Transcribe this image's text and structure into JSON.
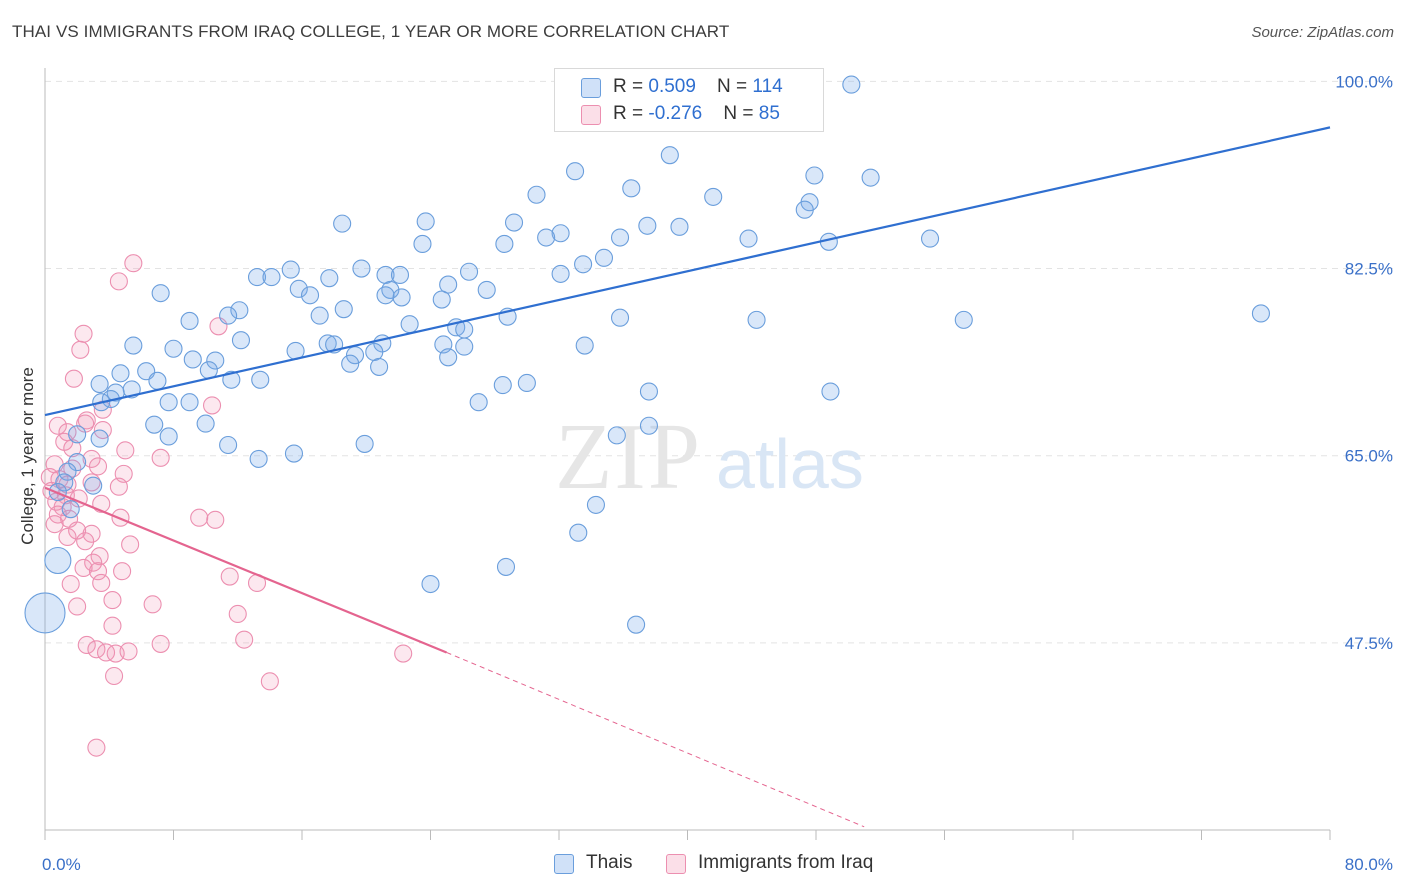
{
  "title": "THAI VS IMMIGRANTS FROM IRAQ COLLEGE, 1 YEAR OR MORE CORRELATION CHART",
  "source": "Source: ZipAtlas.com",
  "watermark": {
    "zip": "ZIP",
    "atlas": "atlas"
  },
  "legend_top": {
    "rows": [
      {
        "r_label": "R = ",
        "r_value": "0.509",
        "n_label": "N = ",
        "n_value": "114"
      },
      {
        "r_label": "R = ",
        "r_value": "-0.276",
        "n_label": "N = ",
        "n_value": "85"
      }
    ]
  },
  "colors": {
    "thais_fill": "rgba(120,170,235,0.28)",
    "thais_stroke": "#6a9edc",
    "thais_line": "#2f6fd0",
    "iraq_fill": "rgba(242,150,180,0.22)",
    "iraq_stroke": "#ec8fb0",
    "iraq_line": "#e4648f",
    "tick_label": "#3a70c8",
    "grid": "#e3e3e3"
  },
  "chart_data": {
    "type": "scatter",
    "title": "THAI VS IMMIGRANTS FROM IRAQ COLLEGE, 1 YEAR OR MORE CORRELATION CHART",
    "xlabel": "",
    "ylabel": "College, 1 year or more",
    "xlim": [
      0,
      80
    ],
    "ylim": [
      30,
      102
    ],
    "x_tick_labels": [
      "0.0%",
      "80.0%"
    ],
    "y_ticks": [
      47.5,
      65.0,
      82.5,
      100.0
    ],
    "y_tick_labels": [
      "47.5%",
      "65.0%",
      "82.5%",
      "100.0%"
    ],
    "grid": true,
    "legend": "bottom-center",
    "series": [
      {
        "name": "Thais",
        "r": 0.509,
        "n": 114,
        "trend": {
          "x": [
            0,
            80
          ],
          "y": [
            68.8,
            95.7
          ]
        },
        "points": [
          {
            "x": 50.2,
            "y": 99.7
          },
          {
            "x": 38.9,
            "y": 93.1
          },
          {
            "x": 33.0,
            "y": 91.6
          },
          {
            "x": 47.9,
            "y": 91.2
          },
          {
            "x": 51.4,
            "y": 91.0
          },
          {
            "x": 36.5,
            "y": 90.0
          },
          {
            "x": 30.6,
            "y": 89.4
          },
          {
            "x": 41.6,
            "y": 89.2
          },
          {
            "x": 47.6,
            "y": 88.7
          },
          {
            "x": 47.3,
            "y": 88.0
          },
          {
            "x": 18.5,
            "y": 86.7
          },
          {
            "x": 23.7,
            "y": 86.9
          },
          {
            "x": 29.2,
            "y": 86.8
          },
          {
            "x": 37.5,
            "y": 86.5
          },
          {
            "x": 39.5,
            "y": 86.4
          },
          {
            "x": 32.1,
            "y": 85.8
          },
          {
            "x": 31.2,
            "y": 85.4
          },
          {
            "x": 35.8,
            "y": 85.4
          },
          {
            "x": 43.8,
            "y": 85.3
          },
          {
            "x": 55.1,
            "y": 85.3
          },
          {
            "x": 48.8,
            "y": 85.0
          },
          {
            "x": 23.5,
            "y": 84.8
          },
          {
            "x": 28.6,
            "y": 84.8
          },
          {
            "x": 34.8,
            "y": 83.5
          },
          {
            "x": 33.5,
            "y": 82.9
          },
          {
            "x": 15.3,
            "y": 82.4
          },
          {
            "x": 19.7,
            "y": 82.5
          },
          {
            "x": 32.1,
            "y": 82.0
          },
          {
            "x": 26.4,
            "y": 82.2
          },
          {
            "x": 21.2,
            "y": 81.9
          },
          {
            "x": 22.1,
            "y": 81.9
          },
          {
            "x": 13.2,
            "y": 81.7
          },
          {
            "x": 14.1,
            "y": 81.7
          },
          {
            "x": 17.7,
            "y": 81.6
          },
          {
            "x": 25.1,
            "y": 81.0
          },
          {
            "x": 15.8,
            "y": 80.6
          },
          {
            "x": 21.5,
            "y": 80.5
          },
          {
            "x": 27.5,
            "y": 80.5
          },
          {
            "x": 21.2,
            "y": 80.0
          },
          {
            "x": 22.2,
            "y": 79.8
          },
          {
            "x": 24.7,
            "y": 79.6
          },
          {
            "x": 7.2,
            "y": 80.2
          },
          {
            "x": 16.5,
            "y": 80.0
          },
          {
            "x": 18.6,
            "y": 78.7
          },
          {
            "x": 12.1,
            "y": 78.6
          },
          {
            "x": 17.1,
            "y": 78.1
          },
          {
            "x": 11.4,
            "y": 78.1
          },
          {
            "x": 28.8,
            "y": 78.0
          },
          {
            "x": 9.0,
            "y": 77.6
          },
          {
            "x": 75.7,
            "y": 78.3
          },
          {
            "x": 35.8,
            "y": 77.9
          },
          {
            "x": 44.3,
            "y": 77.7
          },
          {
            "x": 57.2,
            "y": 77.7
          },
          {
            "x": 22.7,
            "y": 77.3
          },
          {
            "x": 25.6,
            "y": 77.0
          },
          {
            "x": 26.1,
            "y": 76.8
          },
          {
            "x": 12.2,
            "y": 75.8
          },
          {
            "x": 17.6,
            "y": 75.5
          },
          {
            "x": 18.0,
            "y": 75.4
          },
          {
            "x": 21.0,
            "y": 75.5
          },
          {
            "x": 24.8,
            "y": 75.4
          },
          {
            "x": 26.1,
            "y": 75.2
          },
          {
            "x": 33.6,
            "y": 75.3
          },
          {
            "x": 5.5,
            "y": 75.3
          },
          {
            "x": 8.0,
            "y": 75.0
          },
          {
            "x": 15.6,
            "y": 74.8
          },
          {
            "x": 20.5,
            "y": 74.7
          },
          {
            "x": 19.3,
            "y": 74.4
          },
          {
            "x": 25.1,
            "y": 74.2
          },
          {
            "x": 9.2,
            "y": 74.0
          },
          {
            "x": 10.6,
            "y": 73.9
          },
          {
            "x": 19.0,
            "y": 73.6
          },
          {
            "x": 20.8,
            "y": 73.3
          },
          {
            "x": 10.2,
            "y": 73.0
          },
          {
            "x": 6.3,
            "y": 72.9
          },
          {
            "x": 4.7,
            "y": 72.7
          },
          {
            "x": 11.6,
            "y": 72.1
          },
          {
            "x": 7.0,
            "y": 72.0
          },
          {
            "x": 13.4,
            "y": 72.1
          },
          {
            "x": 5.4,
            "y": 71.2
          },
          {
            "x": 28.5,
            "y": 71.6
          },
          {
            "x": 30.0,
            "y": 71.8
          },
          {
            "x": 3.4,
            "y": 71.7
          },
          {
            "x": 4.4,
            "y": 70.9
          },
          {
            "x": 4.1,
            "y": 70.3
          },
          {
            "x": 3.5,
            "y": 70.0
          },
          {
            "x": 37.6,
            "y": 71.0
          },
          {
            "x": 48.9,
            "y": 71.0
          },
          {
            "x": 7.7,
            "y": 70.0
          },
          {
            "x": 27.0,
            "y": 70.0
          },
          {
            "x": 6.8,
            "y": 67.9
          },
          {
            "x": 37.6,
            "y": 67.8
          },
          {
            "x": 35.6,
            "y": 66.9
          },
          {
            "x": 7.7,
            "y": 66.8
          },
          {
            "x": 10.0,
            "y": 68.0
          },
          {
            "x": 9.0,
            "y": 70.0
          },
          {
            "x": 3.4,
            "y": 66.6
          },
          {
            "x": 2.0,
            "y": 67.0
          },
          {
            "x": 11.4,
            "y": 66.0
          },
          {
            "x": 19.9,
            "y": 66.1
          },
          {
            "x": 15.5,
            "y": 65.2
          },
          {
            "x": 13.3,
            "y": 64.7
          },
          {
            "x": 2.0,
            "y": 64.4
          },
          {
            "x": 1.4,
            "y": 63.5
          },
          {
            "x": 1.2,
            "y": 62.5
          },
          {
            "x": 0.8,
            "y": 61.6
          },
          {
            "x": 3.0,
            "y": 62.2
          },
          {
            "x": 1.6,
            "y": 60.0
          },
          {
            "x": 34.3,
            "y": 60.4
          },
          {
            "x": 33.2,
            "y": 57.8
          },
          {
            "x": 0.8,
            "y": 55.2
          },
          {
            "x": 28.7,
            "y": 54.6
          },
          {
            "x": 24.0,
            "y": 53.0
          },
          {
            "x": 36.8,
            "y": 49.2
          }
        ]
      },
      {
        "name": "Immigrants from Iraq",
        "r": -0.276,
        "n": 85,
        "trend_solid": {
          "x": [
            0,
            25
          ],
          "y": [
            62.0,
            46.6
          ]
        },
        "trend_dashed": {
          "x": [
            25,
            51
          ],
          "y": [
            46.6,
            30.3
          ]
        },
        "points": [
          {
            "x": 5.5,
            "y": 83.0
          },
          {
            "x": 4.6,
            "y": 81.3
          },
          {
            "x": 10.8,
            "y": 77.1
          },
          {
            "x": 2.4,
            "y": 76.4
          },
          {
            "x": 2.2,
            "y": 74.9
          },
          {
            "x": 1.8,
            "y": 72.2
          },
          {
            "x": 10.4,
            "y": 69.7
          },
          {
            "x": 3.6,
            "y": 69.3
          },
          {
            "x": 2.6,
            "y": 68.3
          },
          {
            "x": 0.8,
            "y": 67.8
          },
          {
            "x": 1.4,
            "y": 67.2
          },
          {
            "x": 2.5,
            "y": 68.0
          },
          {
            "x": 3.6,
            "y": 67.4
          },
          {
            "x": 1.2,
            "y": 66.3
          },
          {
            "x": 1.7,
            "y": 65.7
          },
          {
            "x": 5.0,
            "y": 65.5
          },
          {
            "x": 7.2,
            "y": 64.8
          },
          {
            "x": 2.9,
            "y": 64.7
          },
          {
            "x": 0.6,
            "y": 64.2
          },
          {
            "x": 3.3,
            "y": 64.0
          },
          {
            "x": 1.7,
            "y": 63.8
          },
          {
            "x": 4.9,
            "y": 63.3
          },
          {
            "x": 0.3,
            "y": 63.0
          },
          {
            "x": 0.9,
            "y": 62.8
          },
          {
            "x": 1.4,
            "y": 62.3
          },
          {
            "x": 2.9,
            "y": 62.5
          },
          {
            "x": 4.6,
            "y": 62.1
          },
          {
            "x": 0.4,
            "y": 61.7
          },
          {
            "x": 1.3,
            "y": 61.3
          },
          {
            "x": 2.1,
            "y": 61.0
          },
          {
            "x": 3.5,
            "y": 60.5
          },
          {
            "x": 0.7,
            "y": 60.7
          },
          {
            "x": 1.1,
            "y": 60.2
          },
          {
            "x": 0.8,
            "y": 59.5
          },
          {
            "x": 1.5,
            "y": 59.1
          },
          {
            "x": 4.7,
            "y": 59.2
          },
          {
            "x": 9.6,
            "y": 59.2
          },
          {
            "x": 10.6,
            "y": 59.0
          },
          {
            "x": 0.6,
            "y": 58.6
          },
          {
            "x": 2.0,
            "y": 58.0
          },
          {
            "x": 2.9,
            "y": 57.7
          },
          {
            "x": 1.4,
            "y": 57.4
          },
          {
            "x": 2.5,
            "y": 57.0
          },
          {
            "x": 5.3,
            "y": 56.7
          },
          {
            "x": 3.4,
            "y": 55.6
          },
          {
            "x": 3.0,
            "y": 55.0
          },
          {
            "x": 2.4,
            "y": 54.5
          },
          {
            "x": 3.3,
            "y": 54.2
          },
          {
            "x": 4.8,
            "y": 54.2
          },
          {
            "x": 11.5,
            "y": 53.7
          },
          {
            "x": 1.6,
            "y": 53.0
          },
          {
            "x": 3.5,
            "y": 53.1
          },
          {
            "x": 13.2,
            "y": 53.1
          },
          {
            "x": 4.2,
            "y": 51.5
          },
          {
            "x": 6.7,
            "y": 51.1
          },
          {
            "x": 2.0,
            "y": 50.9
          },
          {
            "x": 12.0,
            "y": 50.2
          },
          {
            "x": 4.2,
            "y": 49.1
          },
          {
            "x": 12.4,
            "y": 47.8
          },
          {
            "x": 7.2,
            "y": 47.4
          },
          {
            "x": 2.6,
            "y": 47.3
          },
          {
            "x": 3.2,
            "y": 46.9
          },
          {
            "x": 3.8,
            "y": 46.6
          },
          {
            "x": 4.4,
            "y": 46.5
          },
          {
            "x": 5.2,
            "y": 46.7
          },
          {
            "x": 22.3,
            "y": 46.5
          },
          {
            "x": 4.3,
            "y": 44.4
          },
          {
            "x": 14.0,
            "y": 43.9
          },
          {
            "x": 3.2,
            "y": 37.7
          }
        ]
      }
    ]
  }
}
